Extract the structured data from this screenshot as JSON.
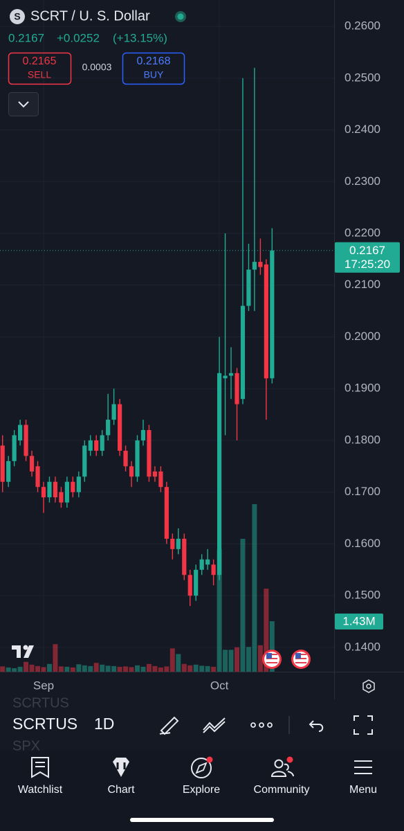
{
  "header": {
    "logo": "S",
    "symbol_title": "SCRT / U. S. Dollar",
    "last": "0.2167",
    "change": "+0.0252",
    "change_pct": "(+13.15%)",
    "sell_price": "0.2165",
    "sell_label": "SELL",
    "spread": "0.0003",
    "buy_price": "0.2168",
    "buy_label": "BUY"
  },
  "chart_data": {
    "type": "candlestick",
    "categories": [
      null,
      null,
      null,
      null,
      null,
      null,
      null,
      "Sep",
      null,
      null,
      null,
      null,
      null,
      null,
      null,
      null,
      null,
      null,
      null,
      null,
      null,
      null,
      null,
      null,
      null,
      null,
      null,
      null,
      null,
      null,
      null,
      null,
      null,
      null,
      null,
      null,
      null,
      "Oct",
      null,
      null,
      null,
      null,
      null,
      null,
      null,
      null,
      null
    ],
    "open": [
      0.179,
      0.172,
      0.176,
      0.18,
      0.183,
      0.177,
      0.175,
      0.171,
      0.169,
      0.172,
      0.17,
      0.168,
      0.172,
      0.17,
      0.173,
      0.178,
      0.18,
      0.178,
      0.181,
      0.184,
      0.187,
      0.178,
      0.175,
      0.173,
      0.18,
      0.182,
      0.174,
      0.174,
      0.171,
      0.161,
      0.159,
      0.161,
      0.154,
      0.15,
      0.155,
      0.156,
      0.156,
      0.154,
      0.192,
      0.1925,
      0.193,
      0.188,
      0.206,
      0.213,
      0.2145,
      0.214,
      0.192
    ],
    "high": [
      0.181,
      0.177,
      0.182,
      0.184,
      0.184,
      0.178,
      0.176,
      0.172,
      0.173,
      0.173,
      0.171,
      0.173,
      0.173,
      0.174,
      0.18,
      0.181,
      0.181,
      0.182,
      0.189,
      0.19,
      0.188,
      0.179,
      0.176,
      0.181,
      0.184,
      0.183,
      0.175,
      0.175,
      0.172,
      0.162,
      0.163,
      0.162,
      0.155,
      0.156,
      0.158,
      0.159,
      0.157,
      0.2,
      0.22,
      0.198,
      0.194,
      0.25,
      0.218,
      0.252,
      0.219,
      0.215,
      0.221
    ],
    "low": [
      0.17,
      0.171,
      0.175,
      0.179,
      0.176,
      0.173,
      0.17,
      0.166,
      0.168,
      0.168,
      0.167,
      0.167,
      0.169,
      0.169,
      0.172,
      0.177,
      0.177,
      0.177,
      0.18,
      0.183,
      0.177,
      0.174,
      0.171,
      0.172,
      0.179,
      0.172,
      0.172,
      0.17,
      0.16,
      0.157,
      0.158,
      0.153,
      0.148,
      0.149,
      0.154,
      0.155,
      0.152,
      0.153,
      0.181,
      0.188,
      0.18,
      0.187,
      0.205,
      0.205,
      0.212,
      0.184,
      0.191
    ],
    "close": [
      0.172,
      0.176,
      0.181,
      0.183,
      0.177,
      0.174,
      0.171,
      0.169,
      0.172,
      0.169,
      0.168,
      0.172,
      0.17,
      0.173,
      0.179,
      0.18,
      0.178,
      0.181,
      0.184,
      0.187,
      0.178,
      0.175,
      0.173,
      0.18,
      0.182,
      0.173,
      0.173,
      0.171,
      0.161,
      0.159,
      0.161,
      0.154,
      0.15,
      0.155,
      0.157,
      0.157,
      0.154,
      0.193,
      0.1925,
      0.193,
      0.187,
      0.206,
      0.213,
      0.2145,
      0.2135,
      0.192,
      0.2167
    ],
    "up_color": "#22ab94",
    "down_color": "#f23645",
    "volume": {
      "values": [
        150000,
        120000,
        100000,
        140000,
        280000,
        200000,
        160000,
        130000,
        220000,
        780000,
        150000,
        140000,
        120000,
        210000,
        180000,
        160000,
        250000,
        200000,
        170000,
        160000,
        140000,
        150000,
        130000,
        180000,
        140000,
        220000,
        160000,
        120000,
        150000,
        660000,
        500000,
        220000,
        180000,
        200000,
        170000,
        160000,
        140000,
        3470000,
        620000,
        620000,
        690000,
        3760000,
        700000,
        4740000,
        750000,
        2350000,
        1430000
      ],
      "value_labels": [
        null,
        null,
        null,
        null,
        null,
        null,
        null,
        null,
        null,
        null,
        null,
        null,
        null,
        null,
        null,
        null,
        null,
        null,
        null,
        null,
        null,
        null,
        null,
        null,
        null,
        null,
        null,
        null,
        null,
        null,
        null,
        null,
        null,
        null,
        null,
        null,
        null,
        null,
        null,
        null,
        null,
        null,
        null,
        null,
        null,
        null,
        "1.43M"
      ]
    },
    "ylim": [
      0.1353,
      0.2651
    ],
    "yticks": [
      {
        "value": 0.26,
        "label": "0.2600"
      },
      {
        "value": 0.25,
        "label": "0.2500"
      },
      {
        "value": 0.24,
        "label": "0.2400"
      },
      {
        "value": 0.23,
        "label": "0.2300"
      },
      {
        "value": 0.22,
        "label": "0.2200"
      },
      {
        "value": 0.21,
        "label": "0.2100"
      },
      {
        "value": 0.2,
        "label": "0.2000"
      },
      {
        "value": 0.19,
        "label": "0.1900"
      },
      {
        "value": 0.18,
        "label": "0.1800"
      },
      {
        "value": 0.17,
        "label": "0.1700"
      },
      {
        "value": 0.16,
        "label": "0.1600"
      },
      {
        "value": 0.15,
        "label": "0.1500"
      },
      {
        "value": 0.14,
        "label": "0.1400"
      }
    ],
    "last_price": {
      "value": 0.2167,
      "label": "0.2167"
    },
    "countdown": "17:25:20",
    "grid": true
  },
  "toolbar": {
    "ghost_above": "SCRTUS",
    "symbol": "SCRTUS",
    "interval": "1D",
    "ghost_below": "SPX"
  },
  "nav": [
    {
      "label": "Watchlist"
    },
    {
      "label": "Chart"
    },
    {
      "label": "Explore"
    },
    {
      "label": "Community"
    },
    {
      "label": "Menu"
    }
  ]
}
